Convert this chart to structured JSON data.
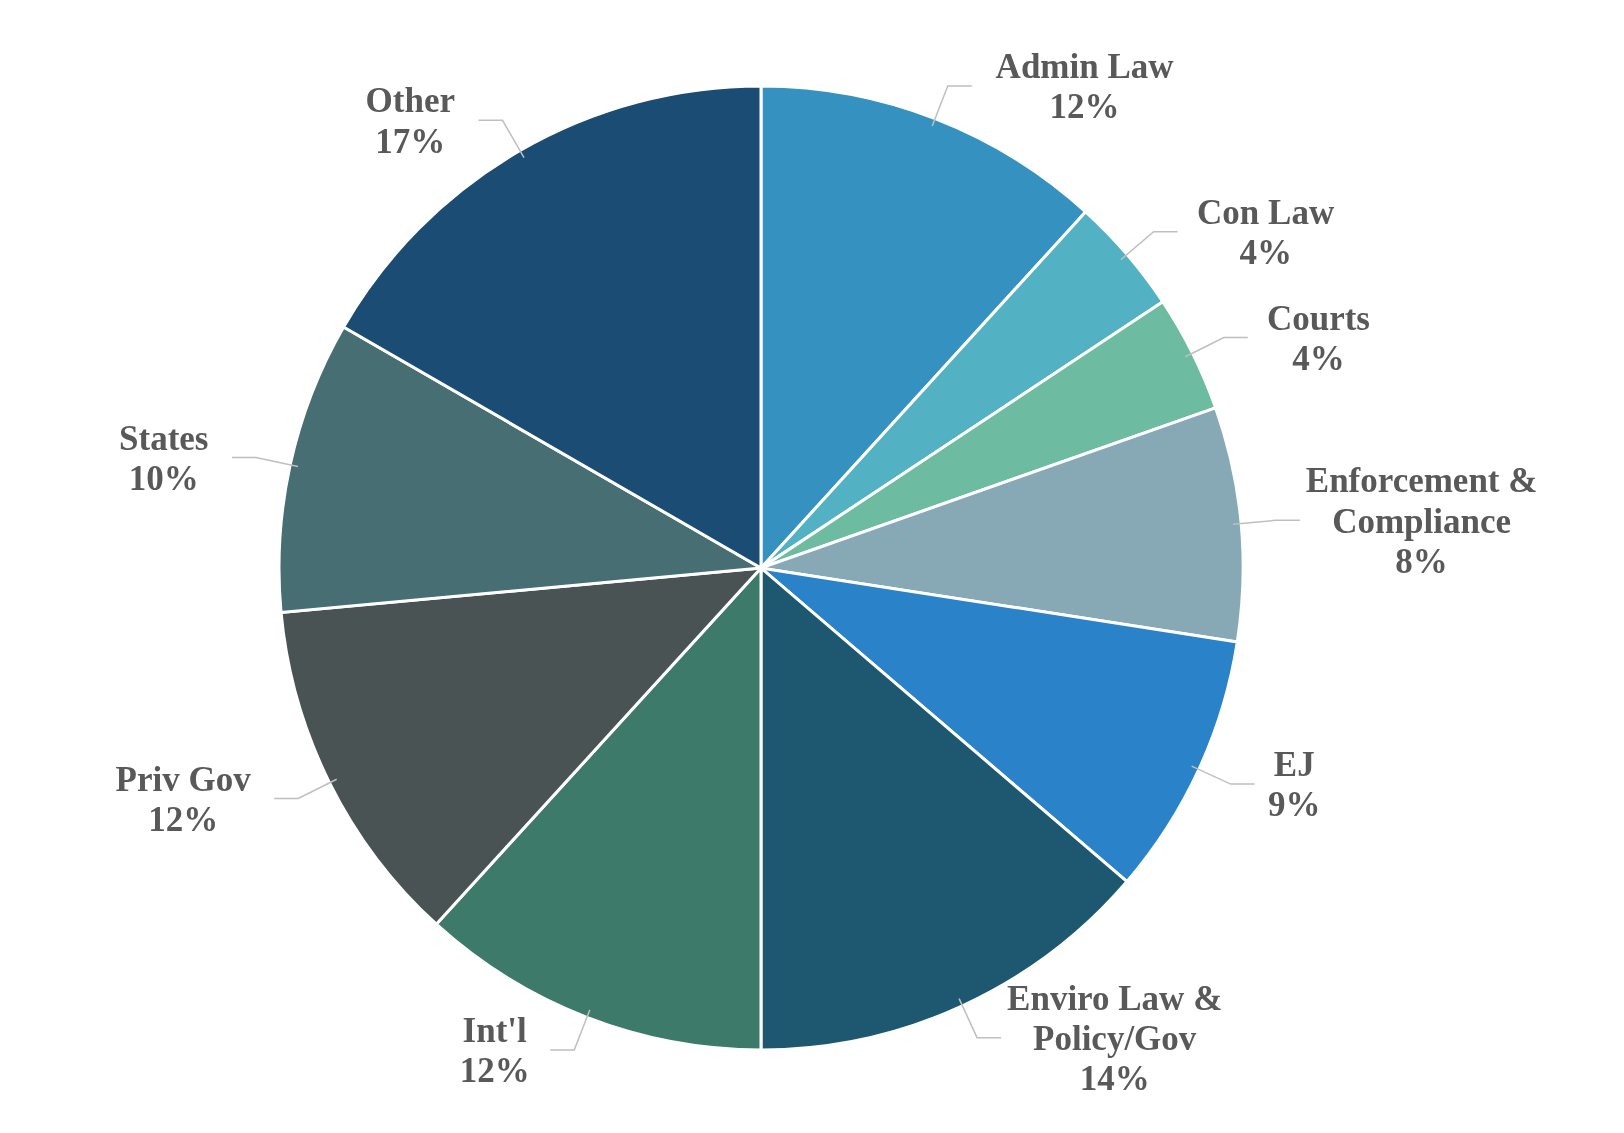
{
  "chart_data": {
    "type": "pie",
    "categories": [
      "Admin Law",
      "Con Law",
      "Courts",
      "Enforcement & Compliance",
      "EJ",
      "Enviro Law & Policy/Gov",
      "Int'l",
      "Priv Gov",
      "States",
      "Other"
    ],
    "values": [
      12,
      4,
      4,
      8,
      9,
      14,
      12,
      12,
      10,
      17
    ],
    "value_labels": [
      "12%",
      "4%",
      "4%",
      "8%",
      "9%",
      "14%",
      "12%",
      "12%",
      "10%",
      "17%"
    ],
    "colors": [
      "#3592c0",
      "#52b1c2",
      "#6dbba0",
      "#86a9b5",
      "#2a82c8",
      "#1e5870",
      "#3d7a6a",
      "#4a5354",
      "#466e73",
      "#1b4c74"
    ]
  }
}
